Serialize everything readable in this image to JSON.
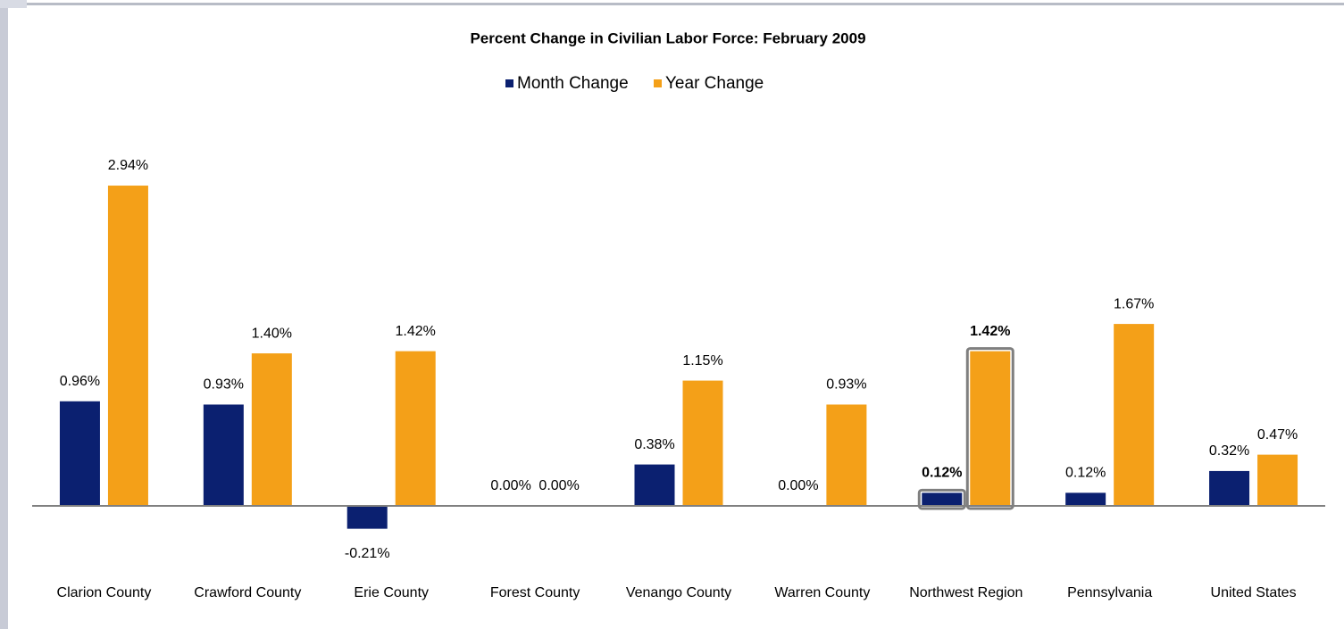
{
  "chart_data": {
    "type": "bar",
    "title": "Percent Change in Civilian Labor Force: February 2009",
    "categories": [
      "Clarion County",
      "Crawford County",
      "Erie County",
      "Forest County",
      "Venango County",
      "Warren County",
      "Northwest Region",
      "Pennsylvania",
      "United States"
    ],
    "series": [
      {
        "name": "Month Change",
        "color": "#0b2070",
        "values": [
          0.96,
          0.93,
          -0.21,
          0.0,
          0.38,
          0.0,
          0.12,
          0.12,
          0.32
        ],
        "value_labels": [
          "0.96%",
          "0.93%",
          "-0.21%",
          "0.00%",
          "0.38%",
          "0.00%",
          "0.12%",
          "0.12%",
          "0.32%"
        ]
      },
      {
        "name": "Year Change",
        "color": "#f4a018",
        "values": [
          2.94,
          1.4,
          1.42,
          0.0,
          1.15,
          0.93,
          1.42,
          1.67,
          0.47
        ],
        "value_labels": [
          "2.94%",
          "1.40%",
          "1.42%",
          "0.00%",
          "1.15%",
          "0.93%",
          "1.42%",
          "1.67%",
          "0.47%"
        ]
      }
    ],
    "highlight": "Northwest Region",
    "legend": "top"
  }
}
